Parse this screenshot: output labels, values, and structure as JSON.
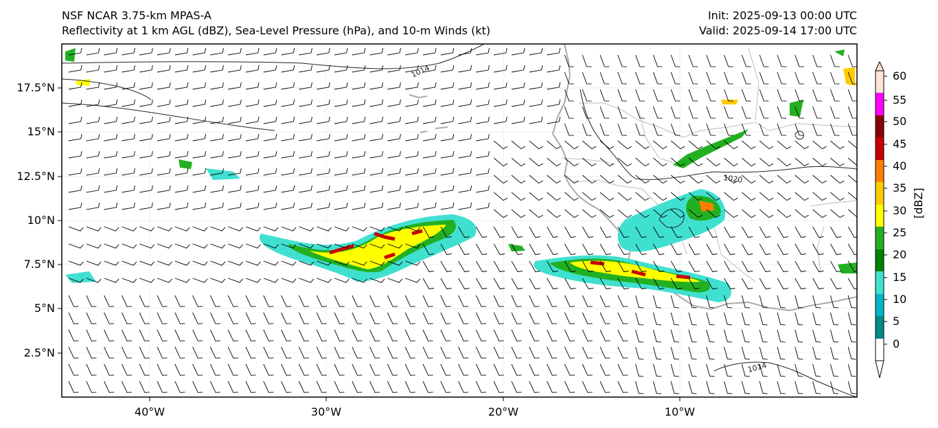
{
  "header": {
    "model": "NSF NCAR 3.75-km MPAS-A",
    "fields": "Reflectivity at 1 km AGL (dBZ), Sea-Level Pressure (hPa), and 10-m Winds (kt)",
    "init": "Init: 2025-09-13 00:00 UTC",
    "valid": "Valid: 2025-09-14 17:00 UTC"
  },
  "axes": {
    "lat_labels": [
      "17.5°N",
      "15°N",
      "12.5°N",
      "10°N",
      "7.5°N",
      "5°N",
      "2.5°N"
    ],
    "lon_labels": [
      "40°W",
      "30°W",
      "20°W",
      "10°W"
    ]
  },
  "colorbar": {
    "unit": "[dBZ]",
    "ticks": [
      "60",
      "55",
      "50",
      "45",
      "40",
      "35",
      "30",
      "25",
      "20",
      "15",
      "10",
      "5",
      "0"
    ],
    "colors": [
      "#ffe4d6",
      "#ff00ff",
      "#8b0000",
      "#c80000",
      "#ff8000",
      "#ffcc00",
      "#ffff00",
      "#22b022",
      "#008000",
      "#40e0d0",
      "#00b4c8",
      "#008b8b",
      "#ffffff"
    ]
  },
  "isobars": {
    "labels": [
      "1014",
      "1020",
      "1014"
    ]
  },
  "colors": {
    "coastline": "#a9a9a9",
    "border": "#bbbbbb",
    "isobar": "#222222"
  }
}
